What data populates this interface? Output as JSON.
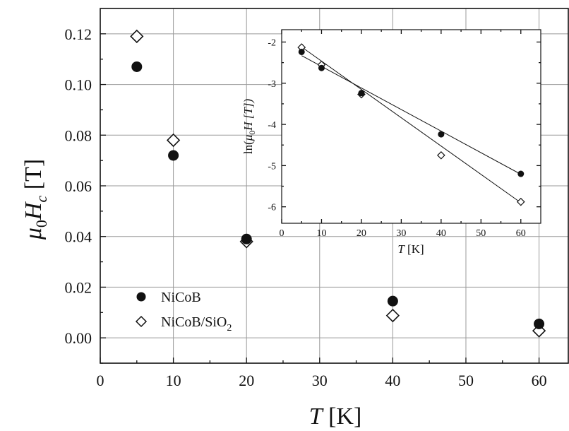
{
  "chart_data": [
    {
      "type": "scatter",
      "title": "",
      "xlabel": "T [K]",
      "ylabel": "μ0Hc [T]",
      "xlim": [
        0,
        64
      ],
      "ylim": [
        -0.01,
        0.13
      ],
      "xticks": [
        "0",
        "10",
        "20",
        "30",
        "40",
        "50",
        "60"
      ],
      "yticks": [
        "0.00",
        "0.02",
        "0.04",
        "0.06",
        "0.08",
        "0.10",
        "0.12"
      ],
      "grid": true,
      "legend_position": "bottom-left",
      "series": [
        {
          "name": "NiCoB",
          "marker": "filled-circle",
          "x": [
            5,
            10,
            20,
            40,
            60
          ],
          "y": [
            0.107,
            0.072,
            0.039,
            0.0145,
            0.0055
          ]
        },
        {
          "name": "NiCoB/SiO2",
          "marker": "open-diamond",
          "x": [
            5,
            10,
            20,
            40,
            60
          ],
          "y": [
            0.119,
            0.078,
            0.038,
            0.0088,
            0.0028
          ]
        }
      ]
    },
    {
      "type": "scatter",
      "title": "",
      "xlabel": "T [K]",
      "ylabel": "ln(μ0H [T])",
      "xlim": [
        0,
        65
      ],
      "ylim": [
        -6.4,
        -1.7
      ],
      "xticks": [
        "0",
        "10",
        "20",
        "30",
        "40",
        "50",
        "60"
      ],
      "yticks": [
        "-2",
        "-3",
        "-4",
        "-5",
        "-6"
      ],
      "grid": false,
      "series": [
        {
          "marker": "filled-circle",
          "x": [
            5,
            10,
            20,
            40,
            60
          ],
          "y": [
            -2.24,
            -2.63,
            -3.24,
            -4.24,
            -5.2
          ],
          "fit_line": {
            "x": [
              5,
              60
            ],
            "y": [
              -2.33,
              -5.21
            ]
          }
        },
        {
          "marker": "open-diamond",
          "x": [
            5,
            10,
            20,
            40,
            60
          ],
          "y": [
            -2.13,
            -2.55,
            -3.27,
            -4.75,
            -5.88
          ],
          "fit_line": {
            "x": [
              5,
              60
            ],
            "y": [
              -2.12,
              -5.9
            ]
          }
        }
      ]
    }
  ],
  "labels": {
    "main_ylabel_mu": "μ",
    "main_ylabel_sub": "0",
    "main_ylabel_h": "H",
    "main_ylabel_hsub": "c",
    "main_ylabel_unit": " [T]",
    "main_xlabel_t": "T",
    "main_xlabel_unit": " [K]",
    "inset_ylabel_pre": "ln(",
    "inset_ylabel_mu": "μ",
    "inset_ylabel_sub": "0",
    "inset_ylabel_post": "H [T])",
    "inset_xlabel_t": "T",
    "inset_xlabel_unit": " [K]",
    "legend_1": "NiCoB",
    "legend_2": "NiCoB/SiO",
    "legend_2_sub": "2"
  }
}
